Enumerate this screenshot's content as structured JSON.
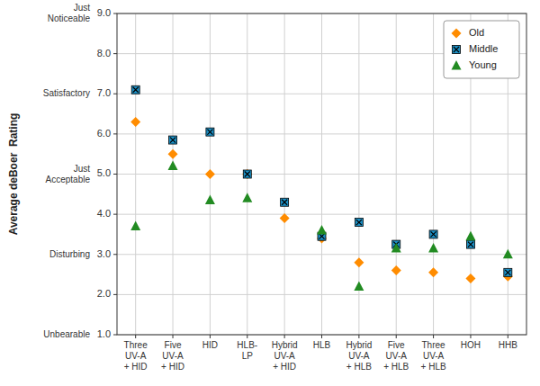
{
  "chart_data": {
    "type": "scatter",
    "y_label": "Average deBoer  Rating",
    "categories": [
      "Three\nUV-A\n+ HID",
      "Five\nUV-A\n+ HID",
      "HID",
      "HLB-\nLP",
      "Hybrid\nUV-A\n+ HID",
      "HLB",
      "Hybrid\nUV-A\n+ HLB",
      "Five\nUV-A\n+ HLB",
      "Three\nUV-A\n+ HLB",
      "HOH",
      "HHB"
    ],
    "series": [
      {
        "name": "Old",
        "color": "#FF8C00",
        "marker": "diamond",
        "values": [
          6.3,
          5.5,
          5.0,
          5.0,
          3.9,
          3.4,
          2.8,
          2.6,
          2.55,
          2.4,
          2.45
        ]
      },
      {
        "name": "Middle",
        "color": "#1B8FC4",
        "marker": "square-x",
        "values": [
          7.1,
          5.85,
          6.05,
          5.0,
          4.3,
          3.45,
          3.8,
          3.25,
          3.5,
          3.25,
          2.55
        ]
      },
      {
        "name": "Young",
        "color": "#228B22",
        "marker": "triangle",
        "values": [
          3.7,
          5.2,
          4.35,
          4.4,
          null,
          3.6,
          2.2,
          3.15,
          3.15,
          3.45,
          3.0
        ]
      }
    ],
    "ylim": [
      1.0,
      9.0
    ],
    "yticks": [
      {
        "value": 1.0,
        "label": "1.0"
      },
      {
        "value": 2.0,
        "label": "2.0"
      },
      {
        "value": 3.0,
        "label": "3.0"
      },
      {
        "value": 4.0,
        "label": "4.0"
      },
      {
        "value": 5.0,
        "label": "5.0"
      },
      {
        "value": 6.0,
        "label": "6.0"
      },
      {
        "value": 7.0,
        "label": "7.0"
      },
      {
        "value": 8.0,
        "label": "8.0"
      },
      {
        "value": 9.0,
        "label": "9.0"
      }
    ],
    "annotations": [
      {
        "text": "Unbearable",
        "y": 1.0
      },
      {
        "text": "Disturbing",
        "y": 3.0
      },
      {
        "text": "Just\nAcceptable",
        "y": 5.0
      },
      {
        "text": "Satisfactory",
        "y": 7.0
      },
      {
        "text": "Just\nNoticeable",
        "y": 9.0
      }
    ],
    "grid": true,
    "legend": "upper right"
  }
}
